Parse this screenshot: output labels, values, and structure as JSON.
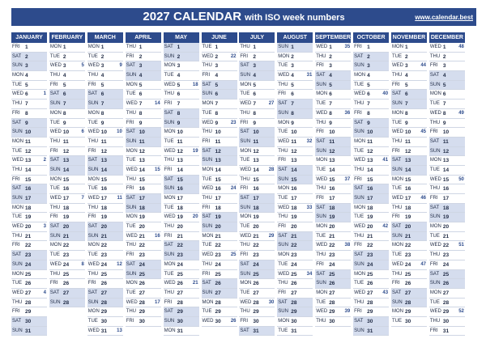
{
  "header": {
    "title_main": "2027 CALENDAR",
    "title_sub": "with ISO week numbers",
    "site": "www.calendar.best"
  },
  "year": 2027,
  "months": [
    "JANUARY",
    "FEBRUARY",
    "MARCH",
    "APRIL",
    "MAY",
    "JUNE",
    "JULY",
    "AUGUST",
    "SEPTEMBER",
    "OCTOBER",
    "NOVEMBER",
    "DECEMBER"
  ],
  "weekdays": [
    "SUN",
    "MON",
    "TUE",
    "WED",
    "THU",
    "FRI",
    "SAT"
  ],
  "colors": {
    "primary": "#2d4b8c",
    "weekend_shade": "#d5ddee",
    "row_line": "#cfd6e4"
  }
}
